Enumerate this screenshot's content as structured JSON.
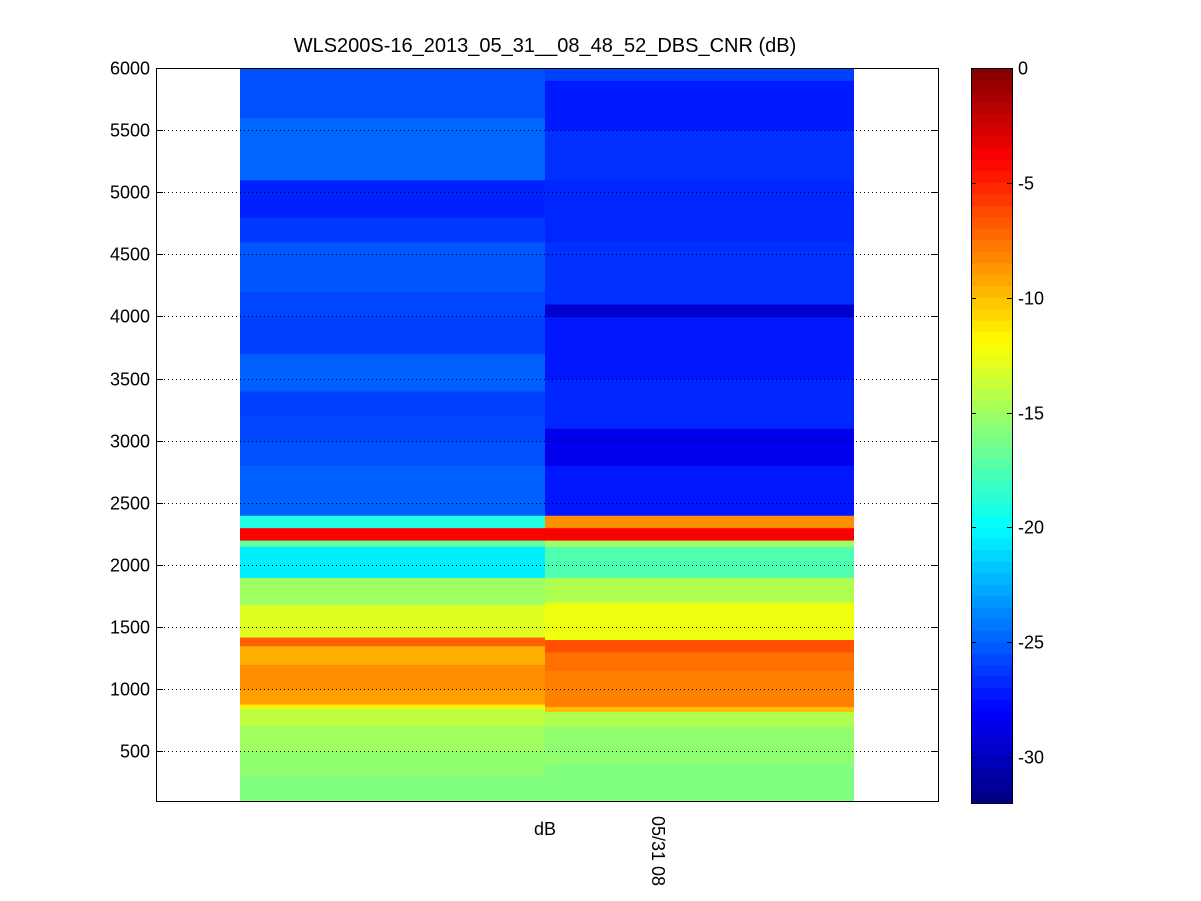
{
  "chart_data": {
    "type": "heatmap",
    "title": "WLS200S-16_2013_05_31__08_48_52_DBS_CNR (dB)",
    "xlabel": "dB",
    "x_tick_labels": [
      "05/31 08"
    ],
    "ylabel": "",
    "ylim": [
      100,
      6000
    ],
    "y_ticks": [
      500,
      1000,
      1500,
      2000,
      2500,
      3000,
      3500,
      4000,
      4500,
      5000,
      5500,
      6000
    ],
    "grid": "horizontal dotted",
    "colormap": "jet",
    "colorbar": {
      "range": [
        -32,
        0
      ],
      "ticks": [
        0,
        -5,
        -10,
        -15,
        -20,
        -25,
        -30
      ]
    },
    "columns": [
      {
        "bands": [
          {
            "y0": 100,
            "y1": 300,
            "value": -16
          },
          {
            "y0": 300,
            "y1": 500,
            "value": -15.5
          },
          {
            "y0": 500,
            "y1": 700,
            "value": -15
          },
          {
            "y0": 700,
            "y1": 850,
            "value": -14
          },
          {
            "y0": 850,
            "y1": 880,
            "value": -11.5
          },
          {
            "y0": 880,
            "y1": 1000,
            "value": -9
          },
          {
            "y0": 1000,
            "y1": 1200,
            "value": -8.5
          },
          {
            "y0": 1200,
            "y1": 1350,
            "value": -9.5
          },
          {
            "y0": 1350,
            "y1": 1420,
            "value": -7
          },
          {
            "y0": 1420,
            "y1": 1680,
            "value": -13
          },
          {
            "y0": 1680,
            "y1": 1900,
            "value": -15
          },
          {
            "y0": 1900,
            "y1": 2150,
            "value": -20.5
          },
          {
            "y0": 2150,
            "y1": 2200,
            "value": -17
          },
          {
            "y0": 2200,
            "y1": 2300,
            "value": -4
          },
          {
            "y0": 2300,
            "y1": 2400,
            "value": -19
          },
          {
            "y0": 2400,
            "y1": 2800,
            "value": -25
          },
          {
            "y0": 2800,
            "y1": 3000,
            "value": -25.5
          },
          {
            "y0": 3000,
            "y1": 3200,
            "value": -25.8
          },
          {
            "y0": 3200,
            "y1": 3400,
            "value": -26
          },
          {
            "y0": 3400,
            "y1": 3700,
            "value": -25
          },
          {
            "y0": 3700,
            "y1": 4000,
            "value": -26
          },
          {
            "y0": 4000,
            "y1": 4200,
            "value": -25.8
          },
          {
            "y0": 4200,
            "y1": 4600,
            "value": -25.3
          },
          {
            "y0": 4600,
            "y1": 4800,
            "value": -26.2
          },
          {
            "y0": 4800,
            "y1": 5100,
            "value": -27
          },
          {
            "y0": 5100,
            "y1": 5600,
            "value": -24.8
          },
          {
            "y0": 5600,
            "y1": 6000,
            "value": -25.5
          }
        ]
      },
      {
        "bands": [
          {
            "y0": 100,
            "y1": 400,
            "value": -16
          },
          {
            "y0": 400,
            "y1": 700,
            "value": -15.5
          },
          {
            "y0": 700,
            "y1": 820,
            "value": -14.5
          },
          {
            "y0": 820,
            "y1": 860,
            "value": -10
          },
          {
            "y0": 860,
            "y1": 1150,
            "value": -8
          },
          {
            "y0": 1150,
            "y1": 1300,
            "value": -7.5
          },
          {
            "y0": 1300,
            "y1": 1400,
            "value": -6.5
          },
          {
            "y0": 1400,
            "y1": 1700,
            "value": -12.5
          },
          {
            "y0": 1700,
            "y1": 1900,
            "value": -14.5
          },
          {
            "y0": 1900,
            "y1": 2150,
            "value": -17.5
          },
          {
            "y0": 2150,
            "y1": 2200,
            "value": -15
          },
          {
            "y0": 2200,
            "y1": 2300,
            "value": -4
          },
          {
            "y0": 2300,
            "y1": 2400,
            "value": -8.5
          },
          {
            "y0": 2400,
            "y1": 2800,
            "value": -27.3
          },
          {
            "y0": 2800,
            "y1": 3100,
            "value": -28.5
          },
          {
            "y0": 3100,
            "y1": 3500,
            "value": -26.8
          },
          {
            "y0": 3500,
            "y1": 4000,
            "value": -27.3
          },
          {
            "y0": 4000,
            "y1": 4100,
            "value": -29.5
          },
          {
            "y0": 4100,
            "y1": 4600,
            "value": -26.5
          },
          {
            "y0": 4600,
            "y1": 5100,
            "value": -26.8
          },
          {
            "y0": 5100,
            "y1": 5500,
            "value": -26.5
          },
          {
            "y0": 5500,
            "y1": 5900,
            "value": -27.2
          },
          {
            "y0": 5900,
            "y1": 6000,
            "value": -26
          }
        ]
      }
    ]
  }
}
